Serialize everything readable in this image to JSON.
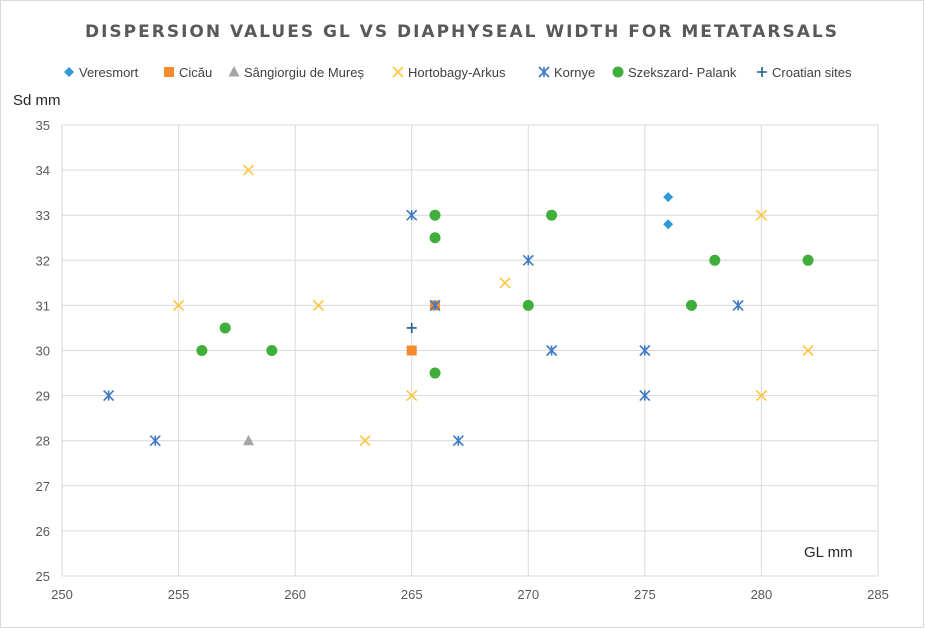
{
  "chart_data": {
    "type": "scatter",
    "title": "DISPERSION VALUES GL VS DIAPHYSEAL WIDTH FOR METATARSALS",
    "xlabel": "GL mm",
    "ylabel": "Sd mm",
    "xlim": [
      250,
      285
    ],
    "ylim": [
      25,
      35
    ],
    "x_ticks": [
      250,
      255,
      260,
      265,
      270,
      275,
      280,
      285
    ],
    "y_ticks": [
      25,
      26,
      27,
      28,
      29,
      30,
      31,
      32,
      33,
      34,
      35
    ],
    "grid": true,
    "legend_position": "top",
    "series": [
      {
        "name": "Veresmort",
        "marker": "diamond",
        "color": "#2E9AD6",
        "points": [
          [
            276,
            33.4
          ],
          [
            276,
            32.8
          ]
        ]
      },
      {
        "name": "Cicău",
        "marker": "square",
        "color": "#F58A2E",
        "points": [
          [
            265,
            30
          ],
          [
            266,
            31
          ]
        ]
      },
      {
        "name": "Sângiorgiu de Mureș",
        "marker": "triangle",
        "color": "#A5A5A5",
        "points": [
          [
            258,
            28
          ]
        ]
      },
      {
        "name": "Hortobagy-Arkus",
        "marker": "x",
        "color": "#FFC53D",
        "points": [
          [
            258,
            34
          ],
          [
            255,
            31
          ],
          [
            261,
            31
          ],
          [
            263,
            28
          ],
          [
            265,
            29
          ],
          [
            269,
            31.5
          ],
          [
            280,
            33
          ],
          [
            280,
            29
          ],
          [
            282,
            30
          ]
        ]
      },
      {
        "name": "Kornye",
        "marker": "star",
        "color": "#3E78C6",
        "points": [
          [
            252,
            29
          ],
          [
            254,
            28
          ],
          [
            265,
            33
          ],
          [
            266,
            31
          ],
          [
            267,
            28
          ],
          [
            270,
            32
          ],
          [
            271,
            30
          ],
          [
            275,
            30
          ],
          [
            275,
            29
          ],
          [
            279,
            31
          ]
        ]
      },
      {
        "name": "Szekszard- Palank",
        "marker": "circle",
        "color": "#3FAE3A",
        "points": [
          [
            256,
            30
          ],
          [
            257,
            30.5
          ],
          [
            259,
            30
          ],
          [
            266,
            33
          ],
          [
            266,
            32.5
          ],
          [
            266,
            29.5
          ],
          [
            270,
            31
          ],
          [
            271,
            33
          ],
          [
            277,
            31
          ],
          [
            278,
            32
          ],
          [
            282,
            32
          ]
        ]
      },
      {
        "name": "Croatian sites",
        "marker": "plus",
        "color": "#1F5F8F",
        "points": [
          [
            265,
            30.5
          ]
        ]
      }
    ]
  }
}
